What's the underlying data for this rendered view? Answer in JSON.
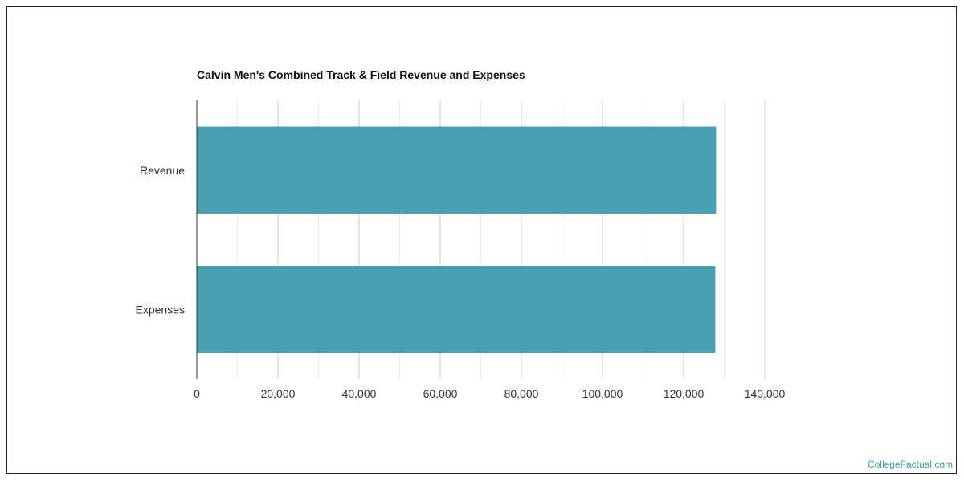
{
  "watermark": "CollegeFactual.com",
  "colors": {
    "bar": "#4aa0b3",
    "grid": "#d9d9d9",
    "axis": "#333333",
    "text": "#333333"
  },
  "chart_data": {
    "type": "bar",
    "orientation": "horizontal",
    "title": "Calvin Men's Combined Track & Field Revenue and Expenses",
    "categories": [
      "Revenue",
      "Expenses"
    ],
    "values": [
      128000,
      127800
    ],
    "xlim": [
      0,
      140000
    ],
    "xticks": [
      0,
      20000,
      40000,
      60000,
      80000,
      100000,
      120000,
      140000
    ],
    "xtick_labels": [
      "0",
      "20,000",
      "40,000",
      "60,000",
      "80,000",
      "100,000",
      "120,000",
      "140,000"
    ],
    "grid": true,
    "legend": "none"
  }
}
